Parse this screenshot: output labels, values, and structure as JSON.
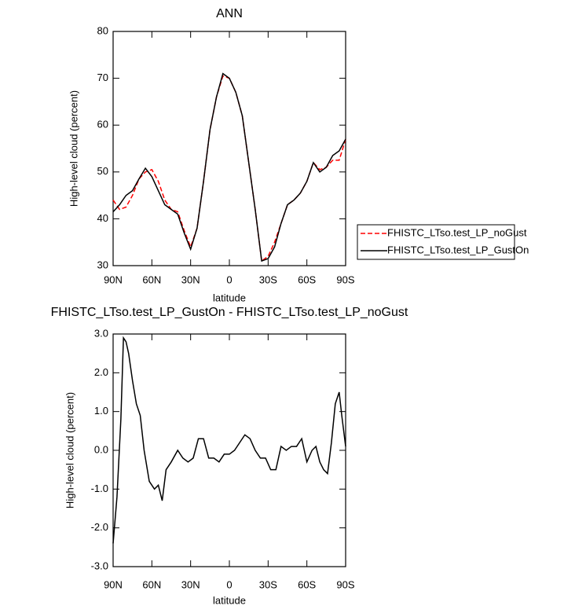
{
  "chart_data": [
    {
      "type": "line",
      "title": "ANN",
      "x_label": "latitude",
      "y_label": "High-level cloud (percent)",
      "x": [
        90,
        85,
        80,
        75,
        70,
        65,
        60,
        55,
        50,
        45,
        40,
        35,
        30,
        25,
        20,
        15,
        10,
        5,
        0,
        -5,
        -10,
        -15,
        -20,
        -25,
        -30,
        -35,
        -40,
        -45,
        -50,
        -55,
        -60,
        -65,
        -70,
        -75,
        -80,
        -85,
        -90
      ],
      "series": [
        {
          "name": "FHISTC_LTso.test_LP_noGust",
          "color": "#ff0000",
          "dashed": true,
          "values": [
            44,
            42,
            42.5,
            45,
            48.5,
            50,
            50.5,
            48,
            44,
            42,
            41.5,
            37.5,
            34,
            38,
            48,
            59,
            66,
            70.5,
            70,
            67,
            62,
            52,
            42,
            31,
            32,
            35,
            39,
            43,
            44,
            45.5,
            48,
            52,
            50.5,
            51,
            52.5,
            52.5,
            57
          ]
        },
        {
          "name": "FHISTC_LTso.test_LP_GustOn",
          "color": "#000000",
          "dashed": false,
          "values": [
            41.5,
            43,
            45,
            46,
            48.5,
            50.8,
            49,
            46,
            43,
            42,
            41,
            37,
            33.5,
            38,
            48,
            59,
            66,
            71,
            70,
            67,
            62,
            52,
            42,
            31,
            31.5,
            34,
            39,
            43,
            44,
            45.5,
            48,
            52,
            50,
            51,
            53.5,
            54.5,
            57
          ]
        }
      ],
      "xlim": [
        90,
        -90
      ],
      "xticks": [
        {
          "value": 90,
          "label": "90N"
        },
        {
          "value": 60,
          "label": "60N"
        },
        {
          "value": 30,
          "label": "30N"
        },
        0,
        {
          "value": -30,
          "label": "30S"
        },
        {
          "value": -60,
          "label": "60S"
        },
        {
          "value": -90,
          "label": "90S"
        }
      ],
      "ylim": [
        30,
        80
      ],
      "yticks": [
        30,
        40,
        50,
        60,
        70,
        80
      ],
      "legend": "right"
    },
    {
      "type": "line",
      "title": "FHISTC_LTso.test_LP_GustOn - FHISTC_LTso.test_LP_noGust",
      "x_label": "latitude",
      "y_label": "High-level cloud (percent)",
      "x": [
        90,
        87,
        84,
        82,
        80,
        78,
        75,
        72,
        69,
        66,
        62,
        58,
        55,
        52,
        49,
        45,
        40,
        36,
        32,
        28,
        24,
        20,
        16,
        12,
        8,
        4,
        0,
        -4,
        -8,
        -12,
        -16,
        -20,
        -24,
        -28,
        -32,
        -36,
        -40,
        -44,
        -48,
        -52,
        -56,
        -60,
        -64,
        -67,
        -70,
        -73,
        -76,
        -79,
        -82,
        -85,
        -87,
        -90
      ],
      "series": [
        {
          "color": "#000000",
          "dashed": false,
          "values": [
            -2.4,
            -1.2,
            0.8,
            2.9,
            2.8,
            2.5,
            1.8,
            1.2,
            0.9,
            0.0,
            -0.8,
            -1.0,
            -0.9,
            -1.3,
            -0.5,
            -0.3,
            0.0,
            -0.2,
            -0.3,
            -0.2,
            0.3,
            0.3,
            -0.2,
            -0.2,
            -0.3,
            -0.1,
            -0.1,
            0.0,
            0.2,
            0.4,
            0.3,
            0.0,
            -0.2,
            -0.2,
            -0.5,
            -0.5,
            0.1,
            0.0,
            0.1,
            0.1,
            0.3,
            -0.3,
            0.0,
            0.1,
            -0.3,
            -0.5,
            -0.6,
            0.2,
            1.2,
            1.5,
            0.9,
            0.1
          ]
        }
      ],
      "xlim": [
        90,
        -90
      ],
      "xticks": [
        {
          "value": 90,
          "label": "90N"
        },
        {
          "value": 60,
          "label": "60N"
        },
        {
          "value": 30,
          "label": "30N"
        },
        0,
        {
          "value": -30,
          "label": "30S"
        },
        {
          "value": -60,
          "label": "60S"
        },
        {
          "value": -90,
          "label": "90S"
        }
      ],
      "ylim": [
        -3,
        3
      ],
      "yticks": [
        {
          "value": -3,
          "label": "-3.0"
        },
        {
          "value": -2,
          "label": "-2.0"
        },
        {
          "value": -1,
          "label": "-1.0"
        },
        {
          "value": 0,
          "label": "0.0"
        },
        {
          "value": 1,
          "label": "1.0"
        },
        {
          "value": 2,
          "label": "2.0"
        },
        {
          "value": 3,
          "label": "3.0"
        }
      ]
    }
  ]
}
